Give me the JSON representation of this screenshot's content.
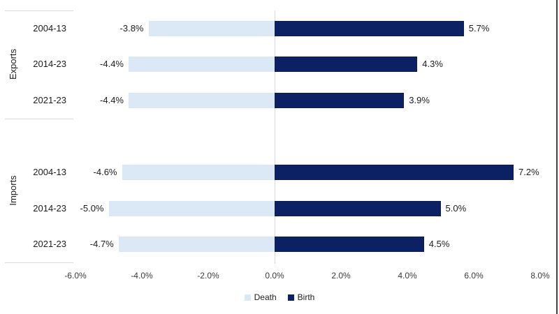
{
  "chart_data": {
    "type": "bar",
    "orientation": "horizontal_diverging",
    "categories": [
      "2004-13",
      "2014-23",
      "2021-23",
      "2004-13",
      "2014-23",
      "2021-23"
    ],
    "category_groups": [
      {
        "label": "Exports",
        "rows": [
          0,
          1,
          2
        ]
      },
      {
        "label": "Imports",
        "rows": [
          3,
          4,
          5
        ]
      }
    ],
    "series": [
      {
        "name": "Death",
        "color": "#dbe8f6",
        "values": [
          -3.8,
          -4.4,
          -4.4,
          -4.6,
          -5.0,
          -4.7
        ],
        "labels": [
          "-3.8%",
          "-4.4%",
          "-4.4%",
          "-4.6%",
          "-5.0%",
          "-4.7%"
        ]
      },
      {
        "name": "Birth",
        "color": "#0b2163",
        "values": [
          5.7,
          4.3,
          3.9,
          7.2,
          5.0,
          4.5
        ],
        "labels": [
          "5.7%",
          "4.3%",
          "3.9%",
          "7.2%",
          "5.0%",
          "4.5%"
        ]
      }
    ],
    "x_axis": {
      "min": -6,
      "max": 8,
      "step": 2,
      "tick_labels": [
        "-6.0%",
        "-4.0%",
        "-2.0%",
        "0.0%",
        "2.0%",
        "4.0%",
        "6.0%",
        "8.0%"
      ]
    },
    "legend": {
      "position": "bottom-center",
      "items": [
        {
          "label": "Death",
          "color": "#dbe8f6"
        },
        {
          "label": "Birth",
          "color": "#0b2163"
        }
      ]
    },
    "grid": "zero-line-only",
    "value_label_position": "outside-end"
  }
}
